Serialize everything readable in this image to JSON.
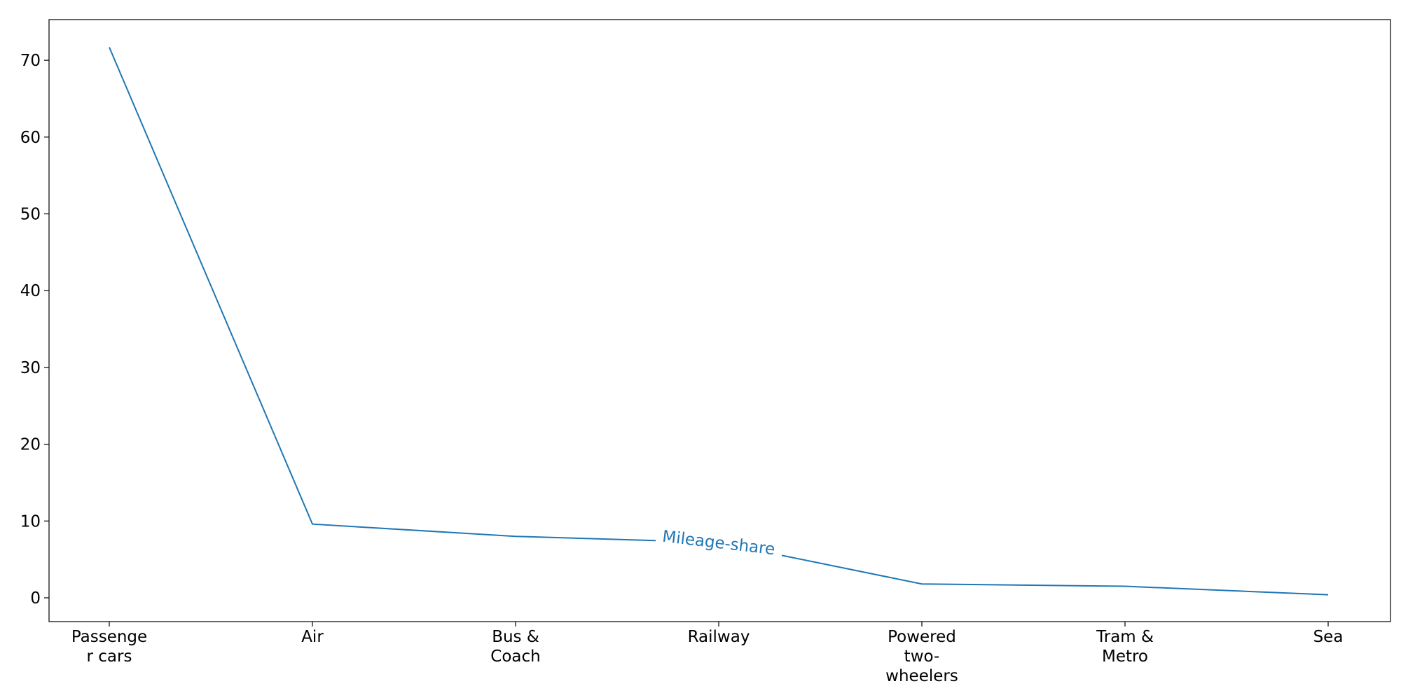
{
  "chart_data": {
    "type": "line",
    "title": "",
    "xlabel": "",
    "ylabel": "",
    "categories": [
      [
        "Passenge",
        "r cars"
      ],
      [
        "Air"
      ],
      [
        "Bus &",
        "Coach"
      ],
      [
        "Railway"
      ],
      [
        "Powered",
        "two-",
        "wheelers"
      ],
      [
        "Tram &",
        "Metro"
      ],
      [
        "Sea"
      ]
    ],
    "series": [
      {
        "name": "Mileage-share",
        "values": [
          71.7,
          9.6,
          8.0,
          7.2,
          1.8,
          1.5,
          0.4
        ],
        "color": "#1f77b4",
        "label_position": "inline on line near Railway"
      }
    ],
    "ylim": [
      -3.1,
      75.3
    ],
    "yticks": [
      0,
      10,
      20,
      30,
      40,
      50,
      60,
      70
    ],
    "grid": false,
    "legend": "none"
  }
}
